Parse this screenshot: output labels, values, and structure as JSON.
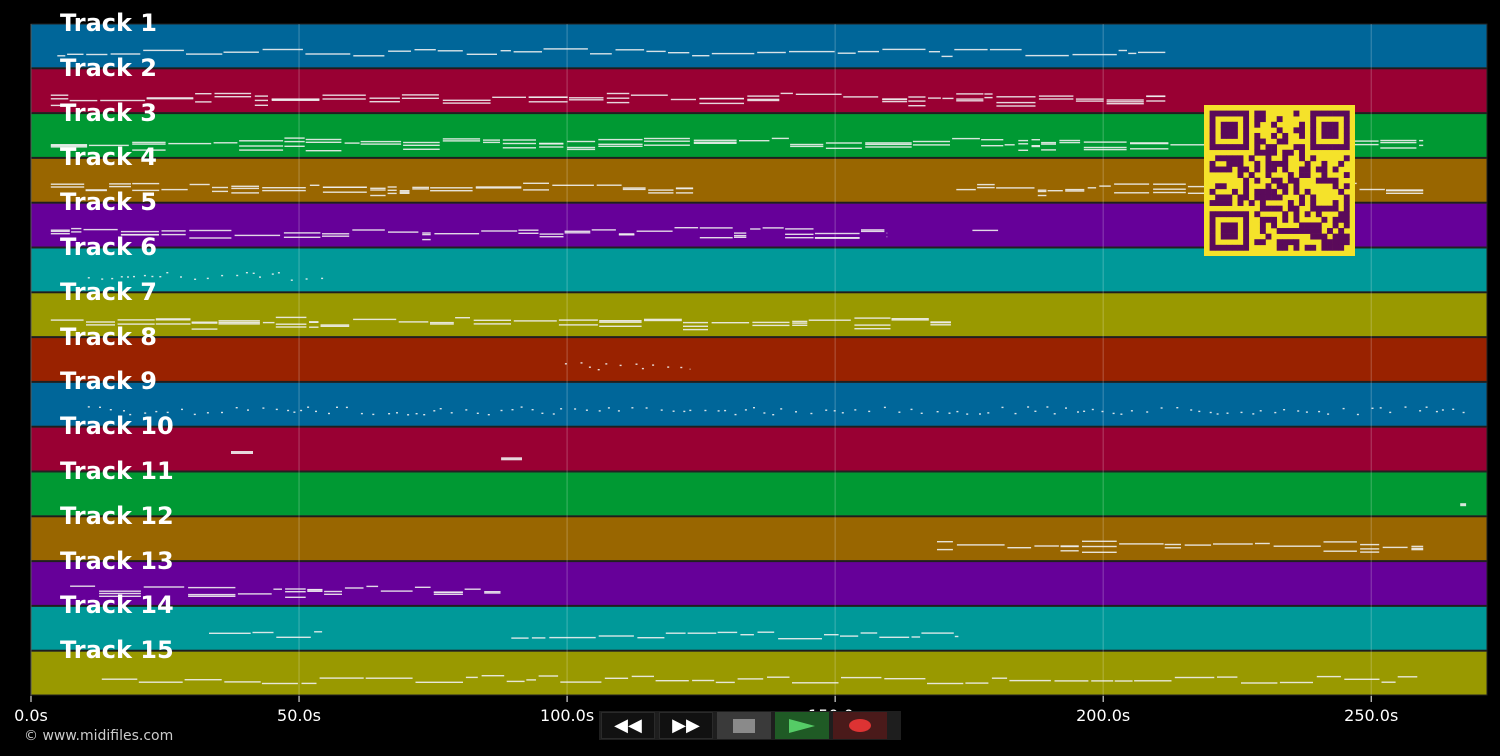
{
  "timeline": {
    "duration_s": 271.6,
    "ticks": [
      {
        "value": 0,
        "label": "0.0s"
      },
      {
        "value": 50,
        "label": "50.0s"
      },
      {
        "value": 100,
        "label": "100.0s"
      },
      {
        "value": 150,
        "label": "150.0s"
      },
      {
        "value": 200,
        "label": "200.0s"
      },
      {
        "value": 250,
        "label": "250.0s"
      }
    ]
  },
  "tracks": [
    {
      "name": "Track 1",
      "color": "#006699",
      "style": "line",
      "segments": [
        [
          4.9,
          211.6
        ]
      ]
    },
    {
      "name": "Track 2",
      "color": "#990033",
      "style": "dense",
      "segments": [
        [
          3.7,
          211.6
        ]
      ]
    },
    {
      "name": "Track 3",
      "color": "#009933",
      "style": "dense",
      "segments": [
        [
          3.7,
          259.7
        ]
      ]
    },
    {
      "name": "Track 4",
      "color": "#996600",
      "style": "dense",
      "segments": [
        [
          3.7,
          123.5
        ],
        [
          172.6,
          259.7
        ]
      ]
    },
    {
      "name": "Track 5",
      "color": "#660099",
      "style": "dense",
      "segments": [
        [
          3.7,
          159.7
        ],
        [
          175.6,
          180.4
        ]
      ]
    },
    {
      "name": "Track 6",
      "color": "#009999",
      "style": "dots",
      "segments": [
        [
          10.6,
          55.4
        ]
      ]
    },
    {
      "name": "Track 7",
      "color": "#999900",
      "style": "dense",
      "segments": [
        [
          3.7,
          171.6
        ]
      ]
    },
    {
      "name": "Track 8",
      "color": "#992200",
      "style": "dots",
      "segments": [
        [
          99.6,
          123.0
        ]
      ]
    },
    {
      "name": "Track 9",
      "color": "#006699",
      "style": "dots",
      "segments": [
        [
          10.6,
          267.5
        ]
      ]
    },
    {
      "name": "Track 10",
      "color": "#990033",
      "style": "block",
      "segments": [
        [
          37.3,
          41.4
        ],
        [
          87.7,
          91.6
        ]
      ]
    },
    {
      "name": "Track 11",
      "color": "#009933",
      "style": "block",
      "segments": [
        [
          266.6,
          267.7
        ]
      ]
    },
    {
      "name": "Track 12",
      "color": "#996600",
      "style": "dense",
      "segments": [
        [
          169.0,
          259.7
        ]
      ]
    },
    {
      "name": "Track 13",
      "color": "#660099",
      "style": "dense",
      "segments": [
        [
          7.3,
          87.7
        ]
      ]
    },
    {
      "name": "Track 14",
      "color": "#009999",
      "style": "line",
      "segments": [
        [
          33.2,
          54.3
        ],
        [
          89.6,
          173.0
        ]
      ]
    },
    {
      "name": "Track 15",
      "color": "#999900",
      "style": "line",
      "segments": [
        [
          13.2,
          258.6
        ]
      ]
    }
  ],
  "copyright": "© www.midifiles.com",
  "controls": {
    "rewind_icon": "rewind-icon",
    "forward_icon": "fast-forward-icon",
    "stop_icon": "stop-icon",
    "play_icon": "play-icon",
    "record_icon": "record-icon"
  },
  "qr_code": {
    "fg": "#5a0a5a",
    "bg": "#f5e22a"
  }
}
